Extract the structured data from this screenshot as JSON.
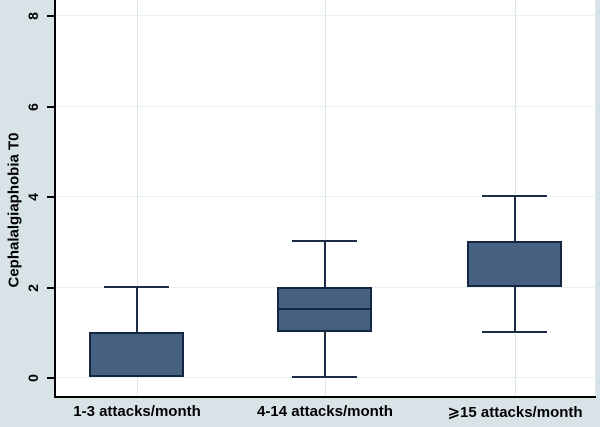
{
  "figure_title": "",
  "colors": {
    "outer_background": "#d7e3e6",
    "plot_background": "#ffffff",
    "gridline_horizontal": "#e9f0f0",
    "gridline_vertical": "#dbe9eb",
    "axis_line": "#000000",
    "box_fill": "#45617f",
    "box_border": "#152640",
    "whisker": "#1c2c44",
    "text": "#000000"
  },
  "chart_data": {
    "type": "box",
    "title": "",
    "xlabel": "",
    "ylabel": "Cephalalgiaphobia T0",
    "ylim": [
      0,
      8
    ],
    "yticks": [
      0,
      2,
      4,
      6,
      8
    ],
    "grid": true,
    "legend": false,
    "categories": [
      "1-3 attacks/month",
      "4-14 attacks/month",
      "⩾15 attacks/month"
    ],
    "boxes": [
      {
        "category": "1-3 attacks/month",
        "whisker_low": 0,
        "q1": 0,
        "q3": 1,
        "whisker_high": 2,
        "median_line_visible": false
      },
      {
        "category": "4-14 attacks/month",
        "whisker_low": 0,
        "q1": 1,
        "median": 1.5,
        "q3": 2,
        "whisker_high": 3,
        "median_line_visible": true
      },
      {
        "category": "⩾15 attacks/month",
        "whisker_low": 1,
        "q1": 2,
        "q3": 3,
        "whisker_high": 4,
        "median_line_visible": false
      }
    ]
  }
}
